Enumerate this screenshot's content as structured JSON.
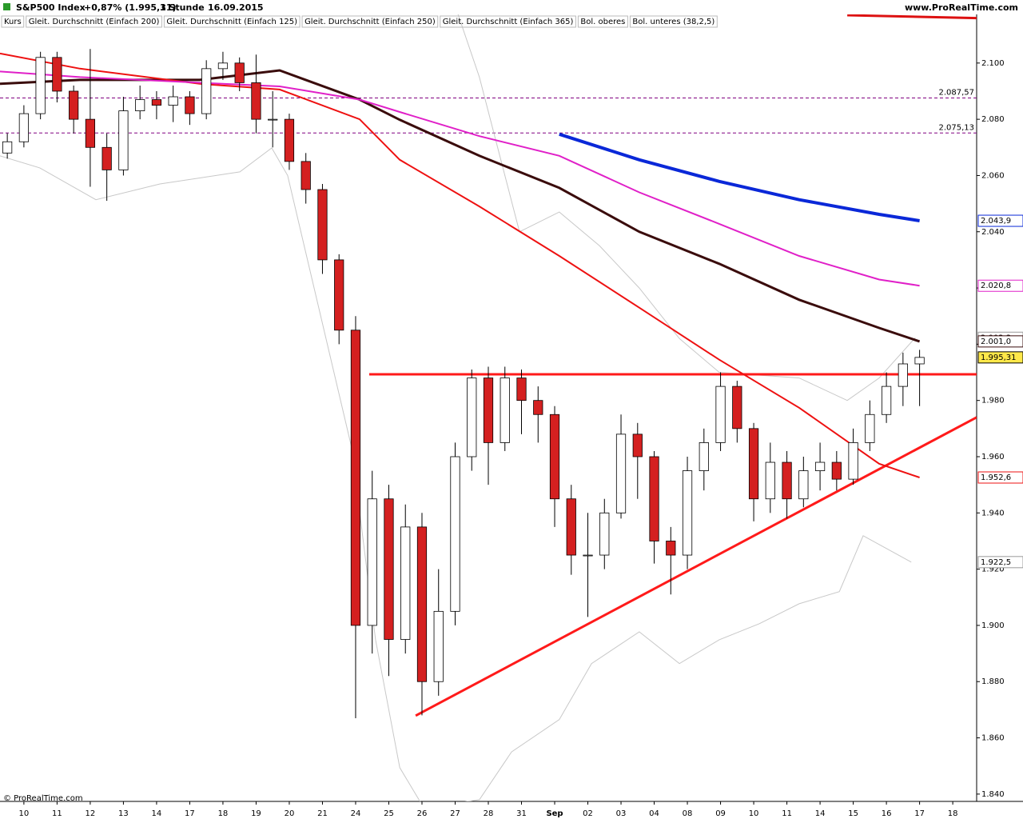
{
  "chart_data": {
    "type": "candlestick",
    "title": "S&P500 Index",
    "change": "+0,87% (1.995,31)",
    "interval": "1 Stunde",
    "date": "16.09.2015",
    "source": "www.ProRealTime.com",
    "copyright": "© ProRealTime.com",
    "xlim": [
      -0.72,
      28.72
    ],
    "ylim": [
      1837.4,
      2117.3
    ],
    "xticks": [
      {
        "value": 0,
        "label": "10"
      },
      {
        "value": 1,
        "label": "11"
      },
      {
        "value": 2,
        "label": "12"
      },
      {
        "value": 3,
        "label": "13"
      },
      {
        "value": 4,
        "label": "14"
      },
      {
        "value": 5,
        "label": "17"
      },
      {
        "value": 6,
        "label": "18"
      },
      {
        "value": 7,
        "label": "19"
      },
      {
        "value": 8,
        "label": "20"
      },
      {
        "value": 9,
        "label": "21"
      },
      {
        "value": 10,
        "label": "24"
      },
      {
        "value": 11,
        "label": "25"
      },
      {
        "value": 12,
        "label": "26"
      },
      {
        "value": 13,
        "label": "27"
      },
      {
        "value": 14,
        "label": "28"
      },
      {
        "value": 15,
        "label": "31"
      },
      {
        "value": 16,
        "label": "Sep"
      },
      {
        "value": 17,
        "label": "02"
      },
      {
        "value": 18,
        "label": "03"
      },
      {
        "value": 19,
        "label": "04"
      },
      {
        "value": 20,
        "label": "08"
      },
      {
        "value": 21,
        "label": "09"
      },
      {
        "value": 22,
        "label": "10"
      },
      {
        "value": 23,
        "label": "11"
      },
      {
        "value": 24,
        "label": "14"
      },
      {
        "value": 25,
        "label": "15"
      },
      {
        "value": 26,
        "label": "16"
      },
      {
        "value": 27,
        "label": "17"
      },
      {
        "value": 28,
        "label": "18"
      }
    ],
    "yticks": [
      {
        "value": 1840,
        "label": "1.840"
      },
      {
        "value": 1860,
        "label": "1.860"
      },
      {
        "value": 1880,
        "label": "1.880"
      },
      {
        "value": 1900,
        "label": "1.900"
      },
      {
        "value": 1920,
        "label": "1.920"
      },
      {
        "value": 1940,
        "label": "1.940"
      },
      {
        "value": 1960,
        "label": "1.960"
      },
      {
        "value": 1980,
        "label": "1.980"
      },
      {
        "value": 2000,
        "label": "2.000"
      },
      {
        "value": 2020,
        "label": "2.020"
      },
      {
        "value": 2040,
        "label": "2.040"
      },
      {
        "value": 2060,
        "label": "2.060"
      },
      {
        "value": 2080,
        "label": "2.080"
      },
      {
        "value": 2100,
        "label": "2.100"
      }
    ],
    "candles": {
      "name": "Kurs",
      "up_color": "#ffffff",
      "down_color": "#d42020",
      "last_label": "1.995,31",
      "x": [
        -0.5,
        0,
        0.5,
        1,
        1.5,
        2,
        2.5,
        3,
        3.5,
        4,
        4.5,
        5,
        5.5,
        6,
        6.5,
        7,
        7.5,
        8,
        8.5,
        9,
        9.5,
        10,
        10.5,
        11,
        11.5,
        12,
        12.5,
        13,
        13.5,
        14,
        14.5,
        15,
        15.5,
        16,
        16.5,
        17,
        17.5,
        18,
        18.5,
        19,
        19.5,
        20,
        20.5,
        21,
        21.5,
        22,
        22.5,
        23,
        23.5,
        24,
        24.5,
        25,
        25.5,
        26,
        26.5,
        27
      ],
      "open": [
        2068,
        2072,
        2082,
        2102,
        2090,
        2080,
        2070,
        2062,
        2083,
        2087,
        2085,
        2088,
        2082,
        2098,
        2100,
        2093,
        2080,
        2080,
        2065,
        2055,
        2030,
        2005,
        1900,
        1945,
        1895,
        1935,
        1880,
        1905,
        1960,
        1988,
        1965,
        1988,
        1980,
        1975,
        1945,
        1925,
        1925,
        1940,
        1968,
        1960,
        1930,
        1925,
        1955,
        1965,
        1985,
        1970,
        1945,
        1958,
        1945,
        1955,
        1958,
        1952,
        1965,
        1975,
        1985,
        1993
      ],
      "high": [
        2075,
        2085,
        2104,
        2104,
        2092,
        2105,
        2075,
        2088,
        2092,
        2090,
        2092,
        2090,
        2101,
        2104,
        2102,
        2103,
        2090,
        2082,
        2068,
        2057,
        2032,
        2010,
        1955,
        1950,
        1943,
        1940,
        1920,
        1965,
        1991,
        1992,
        1992,
        1991,
        1985,
        1978,
        1950,
        1940,
        1945,
        1975,
        1972,
        1962,
        1935,
        1960,
        1970,
        1990,
        1987,
        1972,
        1965,
        1962,
        1960,
        1965,
        1962,
        1970,
        1980,
        1990,
        1997,
        1998
      ],
      "low": [
        2066,
        2070,
        2080,
        2086,
        2075,
        2056,
        2051,
        2060,
        2080,
        2080,
        2079,
        2078,
        2080,
        2094,
        2090,
        2075,
        2070,
        2062,
        2050,
        2025,
        2000,
        1867,
        1890,
        1882,
        1890,
        1868,
        1875,
        1900,
        1955,
        1950,
        1962,
        1968,
        1965,
        1935,
        1918,
        1903,
        1920,
        1938,
        1945,
        1922,
        1911,
        1920,
        1948,
        1962,
        1965,
        1937,
        1940,
        1938,
        1942,
        1948,
        1948,
        1950,
        1962,
        1972,
        1978,
        1978
      ],
      "close": [
        2072,
        2082,
        2102,
        2090,
        2080,
        2070,
        2062,
        2083,
        2087,
        2085,
        2088,
        2082,
        2098,
        2100,
        2093,
        2080,
        2080,
        2065,
        2055,
        2030,
        2005,
        1900,
        1945,
        1895,
        1935,
        1880,
        1905,
        1960,
        1988,
        1965,
        1988,
        1980,
        1975,
        1945,
        1925,
        1925,
        1940,
        1968,
        1960,
        1930,
        1925,
        1955,
        1965,
        1985,
        1970,
        1945,
        1958,
        1945,
        1955,
        1958,
        1952,
        1965,
        1975,
        1985,
        1993,
        1995.31
      ]
    },
    "series": [
      {
        "name": "Gleit. Durchschnitt (Einfach 200)",
        "color": "#3a0c0c",
        "width": 3,
        "last_label": "2.001,0",
        "x": [
          -0.72,
          1.69,
          5.3,
          7.71,
          10.12,
          11.33,
          13.73,
          16.14,
          18.55,
          20.96,
          23.37,
          25.78,
          27
        ],
        "values": [
          2092.6,
          2094,
          2094,
          2097.4,
          2087,
          2079.8,
          2067,
          2055.6,
          2040,
          2028.6,
          2015.8,
          2005.8,
          2001.0
        ]
      },
      {
        "name": "Gleit. Durchschnitt (Einfach 125)",
        "color": "#ee1111",
        "width": 2,
        "last_label": "1.952,6",
        "x": [
          -0.72,
          1.69,
          5.3,
          7.71,
          10.12,
          11.33,
          13.73,
          16.14,
          18.55,
          20.96,
          23.37,
          25.78,
          27
        ],
        "values": [
          2103.4,
          2098,
          2092.6,
          2090.6,
          2080,
          2065.6,
          2049,
          2031.4,
          2013,
          1994.5,
          1977.4,
          1957.5,
          1952.6
        ]
      },
      {
        "name": "Gleit. Durchschnitt (Einfach 250)",
        "color": "#e020c8",
        "width": 2,
        "last_label": "2.020,8",
        "x": [
          -0.72,
          1.69,
          5.3,
          7.71,
          10.12,
          11.33,
          13.73,
          16.14,
          18.55,
          20.96,
          23.37,
          25.78,
          27
        ],
        "values": [
          2097,
          2095,
          2093,
          2091.7,
          2087,
          2082.6,
          2074,
          2067,
          2054,
          2042.8,
          2031.4,
          2023,
          2020.8
        ]
      },
      {
        "name": "Gleit. Durchschnitt (Einfach 365)",
        "color": "#0a28d8",
        "width": 4,
        "last_label": "2.043,9",
        "x": [
          16.14,
          18.55,
          20.96,
          23.37,
          25.78,
          27
        ],
        "values": [
          2074.7,
          2065.6,
          2057.9,
          2051.4,
          2046.2,
          2043.9
        ]
      },
      {
        "name": "Bol. oberes",
        "color": "#c8c8c8",
        "width": 1,
        "last_label": "2.002,3",
        "x": [
          13.01,
          13.73,
          14.94,
          16.14,
          17.35,
          18.55,
          19.76,
          20.96,
          23.37,
          24.82,
          25.78,
          26.87
        ],
        "values": [
          2120,
          2095,
          2040,
          2047,
          2035,
          2020,
          2002,
          1990,
          1988,
          1980,
          1988,
          2002.3
        ]
      },
      {
        "name": "Bol. unteres (38,2,5)",
        "color": "#c8c8c8",
        "width": 1,
        "last_label": "1.922,5",
        "x": [
          -0.72,
          0.48,
          2.17,
          4.1,
          6.51,
          7.47,
          7.95,
          9.88,
          10.6,
          11.33,
          12.05,
          13.73,
          14.7,
          16.14,
          17.11,
          18.55,
          19.76,
          20.96,
          22.17,
          23.37,
          24.58,
          25.3,
          26.75
        ],
        "values": [
          2067,
          2062.7,
          2051.4,
          2057,
          2061.3,
          2069.8,
          2060,
          1963.2,
          1894.9,
          1849.4,
          1835.2,
          1838,
          1855,
          1866.5,
          1886.4,
          1897.7,
          1886.4,
          1894.9,
          1900.6,
          1907.7,
          1912,
          1931.9,
          1922.5
        ]
      }
    ],
    "levels": [
      {
        "value": 2087.57,
        "label": "2.087,57",
        "color": "#800080"
      },
      {
        "value": 2075.13,
        "label": "2.075,13",
        "color": "#800080"
      }
    ],
    "trendlines": [
      {
        "color": "#ff1a1a",
        "x": [
          10.41,
          28.72
        ],
        "y": [
          1989.3,
          1989.3
        ]
      },
      {
        "color": "#ff1a1a",
        "x": [
          11.81,
          28.72
        ],
        "y": [
          1867.9,
          1974
        ]
      },
      {
        "color": "#dd1111",
        "x": [
          24.82,
          28.72
        ],
        "y": [
          2117,
          2116
        ]
      }
    ]
  }
}
